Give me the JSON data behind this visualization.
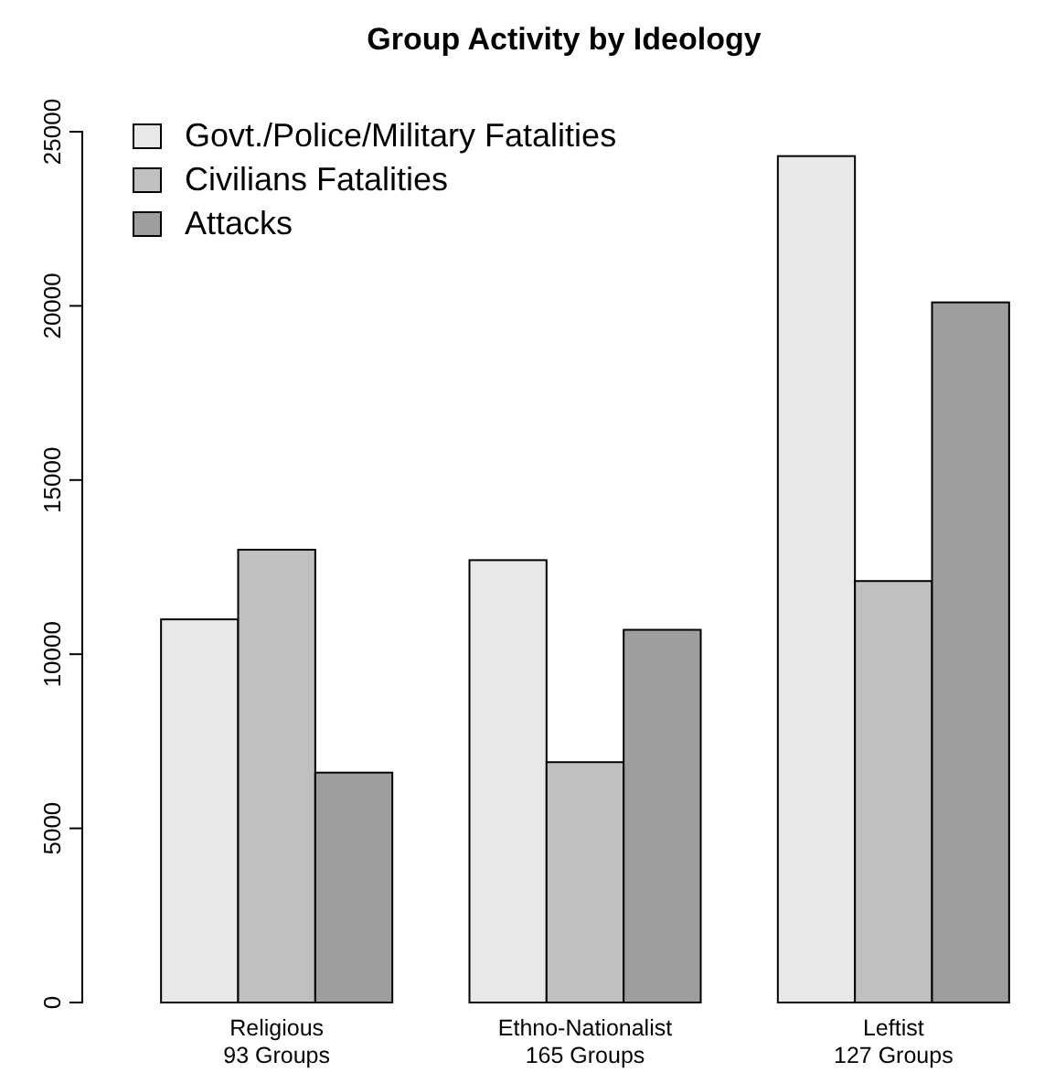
{
  "chart_data": {
    "type": "bar",
    "title": "Group Activity by Ideology",
    "categories": [
      "Religious\n93 Groups",
      "Ethno-Nationalist\n165 Groups",
      "Leftist\n127 Groups"
    ],
    "series": [
      {
        "name": "Govt./Police/Military Fatalities",
        "color": "#e8e8e8",
        "values": [
          11000,
          12700,
          24300
        ]
      },
      {
        "name": "Civilians Fatalities",
        "color": "#c0c0c0",
        "values": [
          13000,
          6900,
          12100
        ]
      },
      {
        "name": "Attacks",
        "color": "#9e9e9e",
        "values": [
          6600,
          10700,
          20100
        ]
      }
    ],
    "ylim": [
      0,
      25000
    ],
    "yticks": [
      0,
      5000,
      10000,
      15000,
      20000,
      25000
    ],
    "grid": false,
    "legend": "top left"
  }
}
